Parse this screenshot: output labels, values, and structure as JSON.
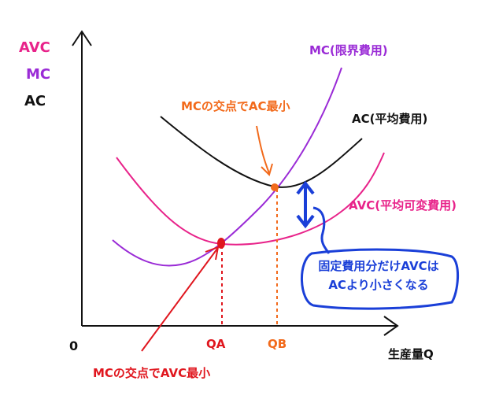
{
  "colors": {
    "avc": "#e8238a",
    "mc": "#9a2bd6",
    "ac": "#111111",
    "axis": "#111111",
    "qa_marker": "#e0161e",
    "qb_marker": "#f26a1b",
    "note": "#1a3fd8"
  },
  "legend": {
    "avc": "AVC",
    "mc": "MC",
    "ac": "AC"
  },
  "curve_labels": {
    "mc": "MC(限界費用)",
    "ac": "AC(平均費用)",
    "avc": "AVC(平均可変費用)"
  },
  "annotations": {
    "ac_min": "MCの交点でAC最小",
    "avc_min": "MCの交点でAVC最小"
  },
  "axis": {
    "origin": "0",
    "x_label": "生産量Q",
    "qa": "QA",
    "qb": "QB"
  },
  "note": {
    "line1": "固定費用分だけAVCは",
    "line2": "ACより小さくなる"
  }
}
